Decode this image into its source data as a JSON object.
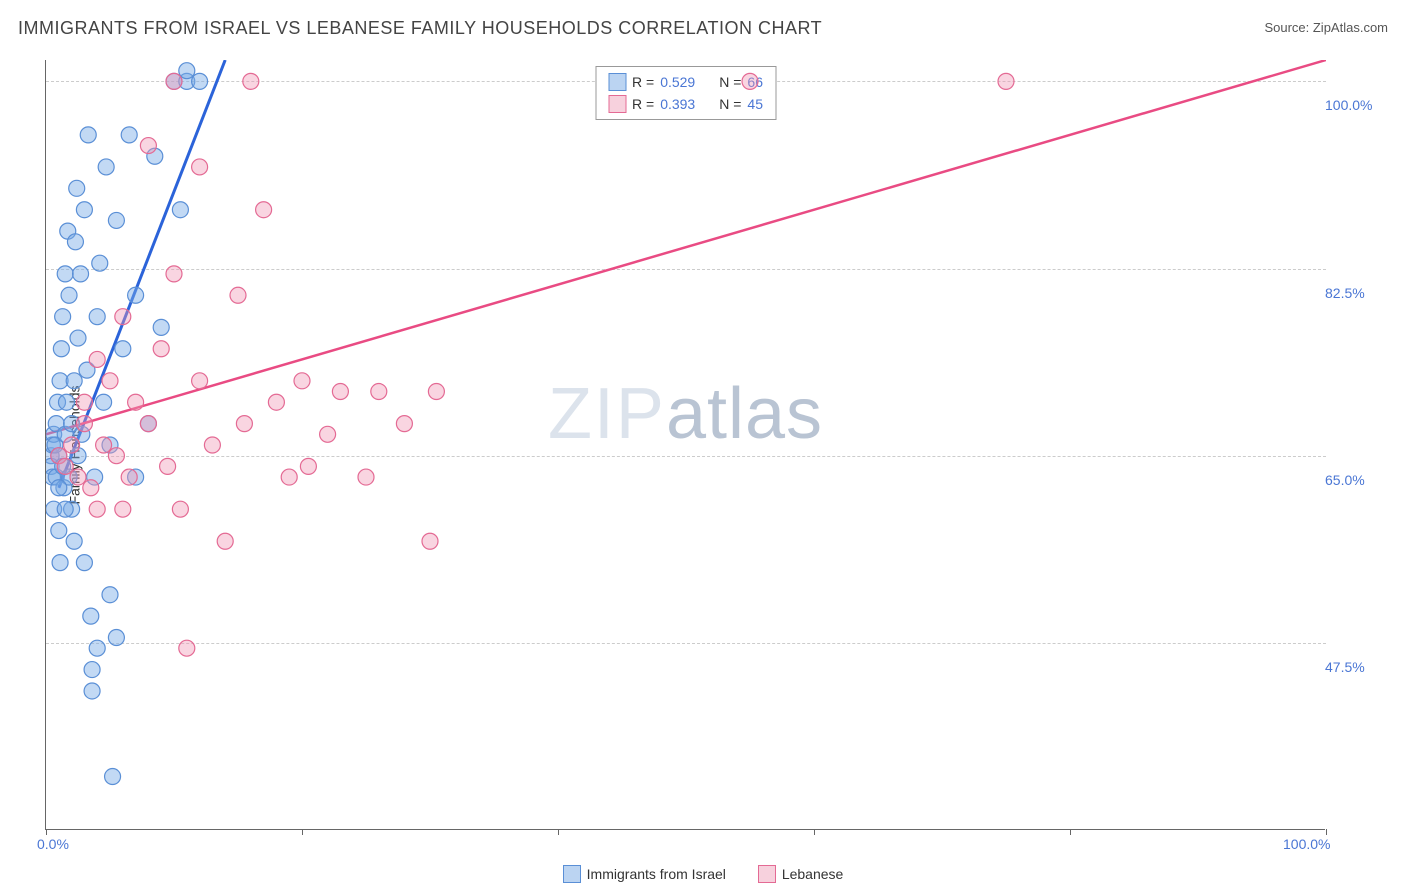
{
  "title": "IMMIGRANTS FROM ISRAEL VS LEBANESE FAMILY HOUSEHOLDS CORRELATION CHART",
  "source_label": "Source: ZipAtlas.com",
  "watermark_a": "ZIP",
  "watermark_b": "atlas",
  "chart": {
    "type": "scatter",
    "xlim": [
      0,
      100
    ],
    "ylim": [
      30,
      102
    ],
    "y_gridlines": [
      47.5,
      65.0,
      82.5,
      100.0
    ],
    "y_tick_labels": [
      "47.5%",
      "65.0%",
      "82.5%",
      "100.0%"
    ],
    "x_ticks": [
      0,
      20,
      40,
      60,
      80,
      100
    ],
    "x_tick_left_label": "0.0%",
    "x_tick_right_label": "100.0%",
    "y_axis_title": "Family Households",
    "background_color": "#ffffff",
    "grid_color": "#cccccc",
    "marker_radius": 8,
    "series": [
      {
        "name": "Immigrants from Israel",
        "color_fill": "rgba(120,170,230,0.45)",
        "color_stroke": "#5a8fd6",
        "trend_color": "#2b63d9",
        "R": 0.529,
        "N": 66,
        "trend": {
          "x1": 1,
          "y1": 62,
          "x2": 14,
          "y2": 102
        },
        "points": [
          [
            0.4,
            65
          ],
          [
            0.4,
            64
          ],
          [
            0.5,
            63
          ],
          [
            0.5,
            66
          ],
          [
            0.6,
            67
          ],
          [
            0.6,
            60
          ],
          [
            0.7,
            66
          ],
          [
            0.8,
            63
          ],
          [
            0.8,
            68
          ],
          [
            0.9,
            70
          ],
          [
            1.0,
            65
          ],
          [
            1.0,
            58
          ],
          [
            1.1,
            55
          ],
          [
            1.1,
            72
          ],
          [
            1.2,
            75
          ],
          [
            1.3,
            78
          ],
          [
            1.3,
            64
          ],
          [
            1.4,
            62
          ],
          [
            1.5,
            82
          ],
          [
            1.5,
            67
          ],
          [
            1.6,
            70
          ],
          [
            1.7,
            86
          ],
          [
            1.8,
            80
          ],
          [
            1.8,
            63
          ],
          [
            2.0,
            68
          ],
          [
            2.0,
            60
          ],
          [
            2.2,
            72
          ],
          [
            2.2,
            57
          ],
          [
            2.3,
            85
          ],
          [
            2.4,
            90
          ],
          [
            2.5,
            65
          ],
          [
            2.5,
            76
          ],
          [
            2.7,
            82
          ],
          [
            2.8,
            67
          ],
          [
            3.0,
            88
          ],
          [
            3.0,
            55
          ],
          [
            3.2,
            73
          ],
          [
            3.3,
            95
          ],
          [
            3.5,
            50
          ],
          [
            3.6,
            43
          ],
          [
            3.6,
            45
          ],
          [
            3.8,
            63
          ],
          [
            4.0,
            47
          ],
          [
            4.0,
            78
          ],
          [
            4.2,
            83
          ],
          [
            4.5,
            70
          ],
          [
            4.7,
            92
          ],
          [
            5.0,
            66
          ],
          [
            5.0,
            52
          ],
          [
            5.2,
            35
          ],
          [
            5.5,
            87
          ],
          [
            5.5,
            48
          ],
          [
            6.0,
            75
          ],
          [
            6.5,
            95
          ],
          [
            7.0,
            80
          ],
          [
            7.0,
            63
          ],
          [
            8.0,
            68
          ],
          [
            8.5,
            93
          ],
          [
            9.0,
            77
          ],
          [
            10.0,
            100
          ],
          [
            10.5,
            88
          ],
          [
            11.0,
            100
          ],
          [
            11.0,
            101
          ],
          [
            12.0,
            100
          ],
          [
            1.0,
            62
          ],
          [
            1.5,
            60
          ]
        ]
      },
      {
        "name": "Lebanese",
        "color_fill": "rgba(240,150,180,0.40)",
        "color_stroke": "#e46a94",
        "trend_color": "#e94b83",
        "R": 0.393,
        "N": 45,
        "trend": {
          "x1": 0,
          "y1": 67,
          "x2": 100,
          "y2": 102
        },
        "points": [
          [
            1.0,
            65
          ],
          [
            1.5,
            64
          ],
          [
            2.0,
            66
          ],
          [
            2.5,
            63
          ],
          [
            3.0,
            68
          ],
          [
            3.0,
            70
          ],
          [
            3.5,
            62
          ],
          [
            4.0,
            60
          ],
          [
            4.0,
            74
          ],
          [
            4.5,
            66
          ],
          [
            5.0,
            72
          ],
          [
            5.5,
            65
          ],
          [
            6.0,
            78
          ],
          [
            6.5,
            63
          ],
          [
            7.0,
            70
          ],
          [
            8.0,
            68
          ],
          [
            8.0,
            94
          ],
          [
            9.0,
            75
          ],
          [
            9.5,
            64
          ],
          [
            10.0,
            82
          ],
          [
            10.5,
            60
          ],
          [
            11.0,
            47
          ],
          [
            12.0,
            72
          ],
          [
            12.0,
            92
          ],
          [
            13.0,
            66
          ],
          [
            14.0,
            57
          ],
          [
            15.0,
            80
          ],
          [
            15.5,
            68
          ],
          [
            16.0,
            100
          ],
          [
            18.0,
            70
          ],
          [
            19.0,
            63
          ],
          [
            20.0,
            72
          ],
          [
            20.5,
            64
          ],
          [
            22.0,
            67
          ],
          [
            23.0,
            71
          ],
          [
            25.0,
            63
          ],
          [
            26.0,
            71
          ],
          [
            28.0,
            68
          ],
          [
            30.0,
            57
          ],
          [
            30.5,
            71
          ],
          [
            55.0,
            100
          ],
          [
            75.0,
            100
          ],
          [
            10.0,
            100
          ],
          [
            6.0,
            60
          ],
          [
            17.0,
            88
          ]
        ]
      }
    ]
  },
  "bottom_legend": {
    "items": [
      "Immigrants from Israel",
      "Lebanese"
    ]
  },
  "stats_legend": {
    "rows": [
      {
        "sw": "blue",
        "r_label": "R =",
        "r_val": "0.529",
        "n_label": "N =",
        "n_val": "66"
      },
      {
        "sw": "pink",
        "r_label": "R =",
        "r_val": "0.393",
        "n_label": "N =",
        "n_val": "45"
      }
    ]
  }
}
